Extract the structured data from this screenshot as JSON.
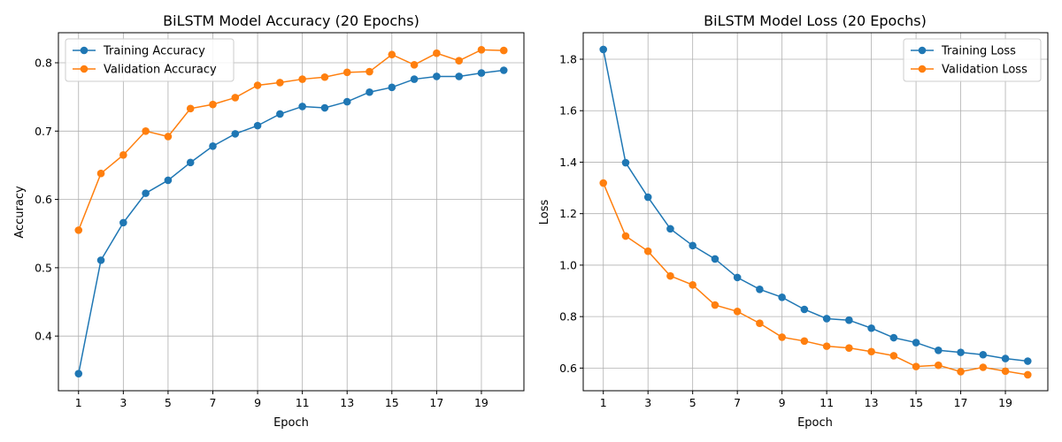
{
  "colors": {
    "training": "#1f77b4",
    "validation": "#ff7f0e",
    "grid": "#b0b0b0"
  },
  "chart_data": [
    {
      "type": "line",
      "title": "BiLSTM Model Accuracy (20 Epochs)",
      "xlabel": "Epoch",
      "ylabel": "Accuracy",
      "x": [
        1,
        2,
        3,
        4,
        5,
        6,
        7,
        8,
        9,
        10,
        11,
        12,
        13,
        14,
        15,
        16,
        17,
        18,
        19,
        20
      ],
      "xticks": [
        1,
        3,
        5,
        7,
        9,
        11,
        13,
        15,
        17,
        19
      ],
      "xlim": [
        0.1,
        20.9
      ],
      "yticks": [
        0.4,
        0.5,
        0.6,
        0.7,
        0.8
      ],
      "ytick_labels": [
        "0.4",
        "0.5",
        "0.6",
        "0.7",
        "0.8"
      ],
      "ylim": [
        0.32,
        0.844
      ],
      "grid": true,
      "legend_position": "top-left",
      "series": [
        {
          "name": "Training Accuracy",
          "color": "#1f77b4",
          "values": [
            0.345,
            0.511,
            0.566,
            0.609,
            0.628,
            0.654,
            0.678,
            0.696,
            0.708,
            0.725,
            0.736,
            0.734,
            0.743,
            0.757,
            0.764,
            0.776,
            0.78,
            0.78,
            0.785,
            0.789
          ]
        },
        {
          "name": "Validation Accuracy",
          "color": "#ff7f0e",
          "values": [
            0.555,
            0.638,
            0.665,
            0.7,
            0.692,
            0.733,
            0.739,
            0.749,
            0.767,
            0.771,
            0.776,
            0.779,
            0.786,
            0.787,
            0.812,
            0.797,
            0.814,
            0.803,
            0.819,
            0.818
          ]
        }
      ]
    },
    {
      "type": "line",
      "title": "BiLSTM Model Loss (20 Epochs)",
      "xlabel": "Epoch",
      "ylabel": "Loss",
      "x": [
        1,
        2,
        3,
        4,
        5,
        6,
        7,
        8,
        9,
        10,
        11,
        12,
        13,
        14,
        15,
        16,
        17,
        18,
        19,
        20
      ],
      "xticks": [
        1,
        3,
        5,
        7,
        9,
        11,
        13,
        15,
        17,
        19
      ],
      "xlim": [
        0.1,
        20.9
      ],
      "yticks": [
        0.6,
        0.8,
        1.0,
        1.2,
        1.4,
        1.6,
        1.8
      ],
      "ytick_labels": [
        "0.6",
        "0.8",
        "1.0",
        "1.2",
        "1.4",
        "1.6",
        "1.8"
      ],
      "ylim": [
        0.512,
        1.903
      ],
      "grid": true,
      "legend_position": "top-right",
      "series": [
        {
          "name": "Training Loss",
          "color": "#1f77b4",
          "values": [
            1.838,
            1.398,
            1.264,
            1.141,
            1.076,
            1.024,
            0.952,
            0.906,
            0.875,
            0.828,
            0.792,
            0.786,
            0.755,
            0.718,
            0.699,
            0.669,
            0.661,
            0.652,
            0.637,
            0.627
          ]
        },
        {
          "name": "Validation Loss",
          "color": "#ff7f0e",
          "values": [
            1.319,
            1.113,
            1.054,
            0.958,
            0.923,
            0.845,
            0.82,
            0.774,
            0.72,
            0.705,
            0.685,
            0.678,
            0.664,
            0.648,
            0.606,
            0.611,
            0.586,
            0.603,
            0.588,
            0.574
          ]
        }
      ]
    }
  ]
}
